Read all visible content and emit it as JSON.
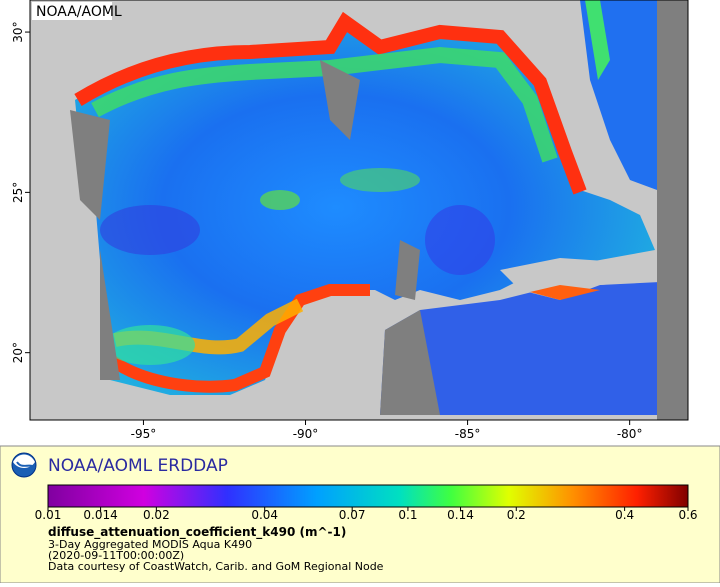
{
  "map": {
    "watermark": "NOAA/AOML",
    "xlim": [
      -98.5,
      -78.2
    ],
    "ylim": [
      17.9,
      31.0
    ],
    "xticks": [
      {
        "value": -95,
        "label": "-95°"
      },
      {
        "value": -90,
        "label": "-90°"
      },
      {
        "value": -85,
        "label": "-85°"
      },
      {
        "value": -80,
        "label": "-80°"
      }
    ],
    "yticks": [
      {
        "value": 20,
        "label": "20°"
      },
      {
        "value": 25,
        "label": "25°"
      },
      {
        "value": 30,
        "label": "30°"
      }
    ]
  },
  "legend": {
    "title": "NOAA/AOML ERDDAP",
    "colorbar": {
      "lim": [
        0.01,
        0.6
      ],
      "log": true,
      "ticks": [
        0.01,
        0.014,
        0.02,
        0.04,
        0.07,
        0.1,
        0.14,
        0.2,
        0.4,
        0.6
      ]
    },
    "variable": "diffuse_attenuation_coefficient_k490 (m^-1)",
    "lines": [
      "3-Day Aggregated MODIS Aqua K490",
      "(2020-09-11T00:00:00Z)",
      "Data courtesy of CoastWatch, Carib. and GoM Regional Node"
    ]
  }
}
